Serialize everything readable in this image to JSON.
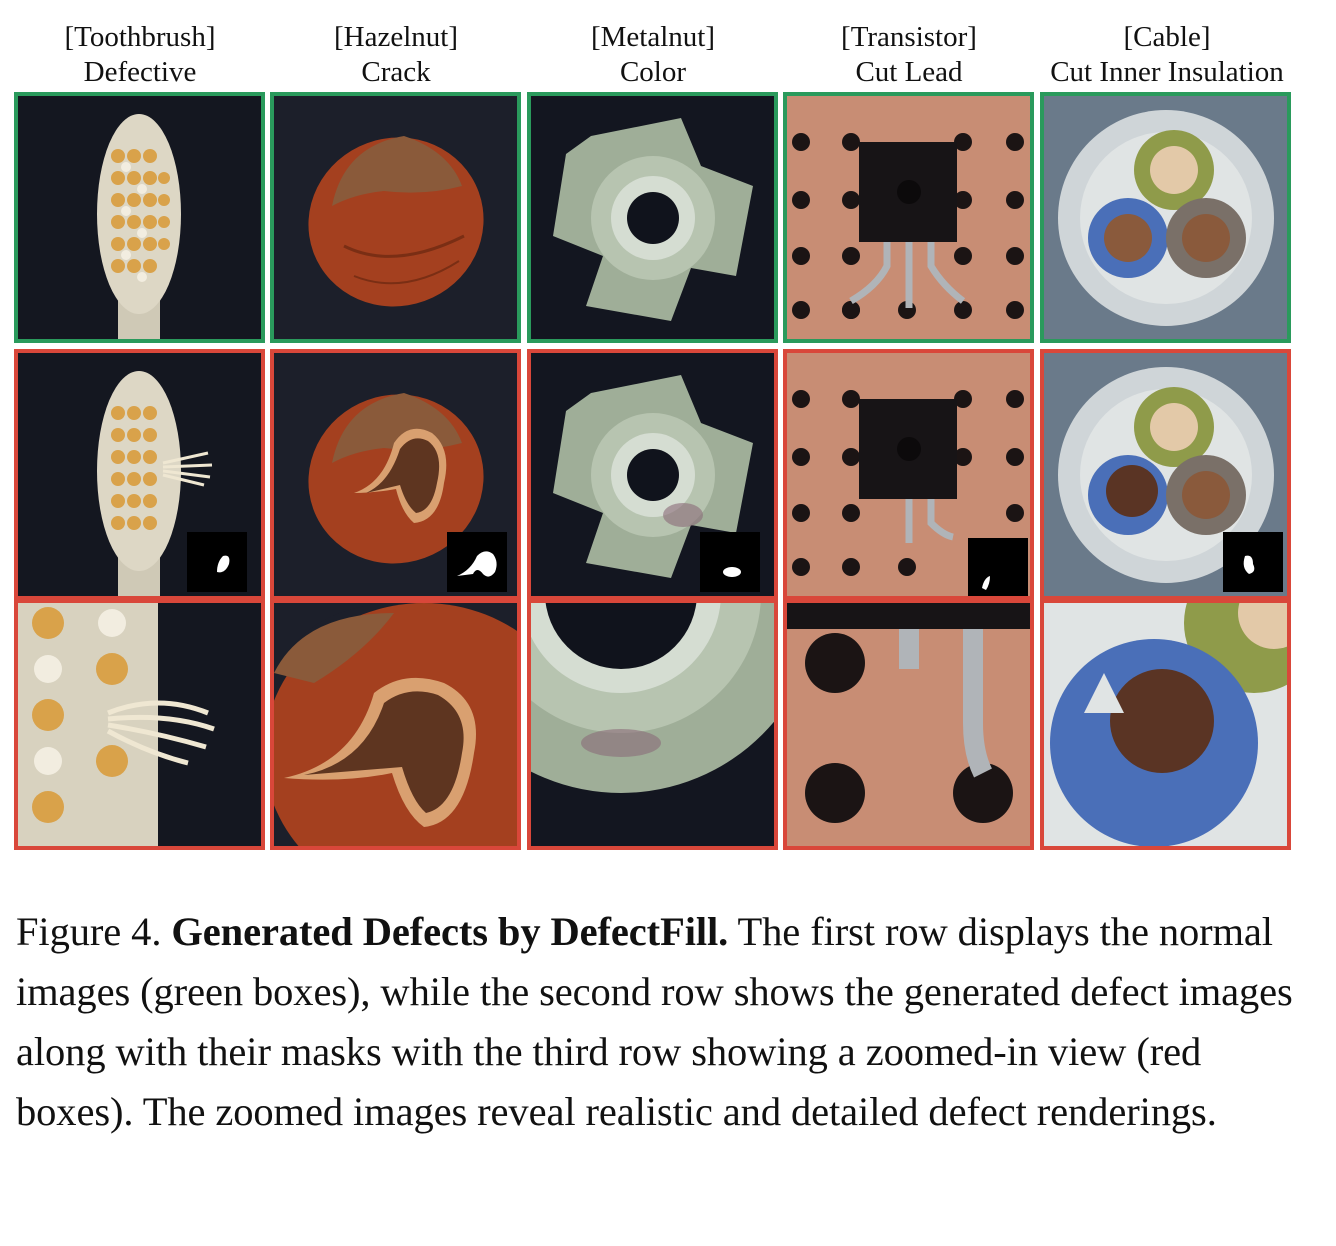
{
  "columns": [
    {
      "category": "[Toothbrush]",
      "defect": "Defective"
    },
    {
      "category": "[Hazelnut]",
      "defect": "Crack"
    },
    {
      "category": "[Metalnut]",
      "defect": "Color"
    },
    {
      "category": "[Transistor]",
      "defect": "Cut Lead"
    },
    {
      "category": "[Cable]",
      "defect": "Cut Inner Insulation"
    }
  ],
  "colors": {
    "normal_box": "#2a9a5c",
    "defect_box": "#d9473a"
  },
  "caption": {
    "label": "Figure 4.",
    "title": "Generated Defects by DefectFill.",
    "body": "The first row displays the normal images (green boxes), while the second row shows the generated defect images along with their masks with the third row showing a zoomed-in view (red boxes). The zoomed images reveal realistic and detailed defect renderings."
  }
}
